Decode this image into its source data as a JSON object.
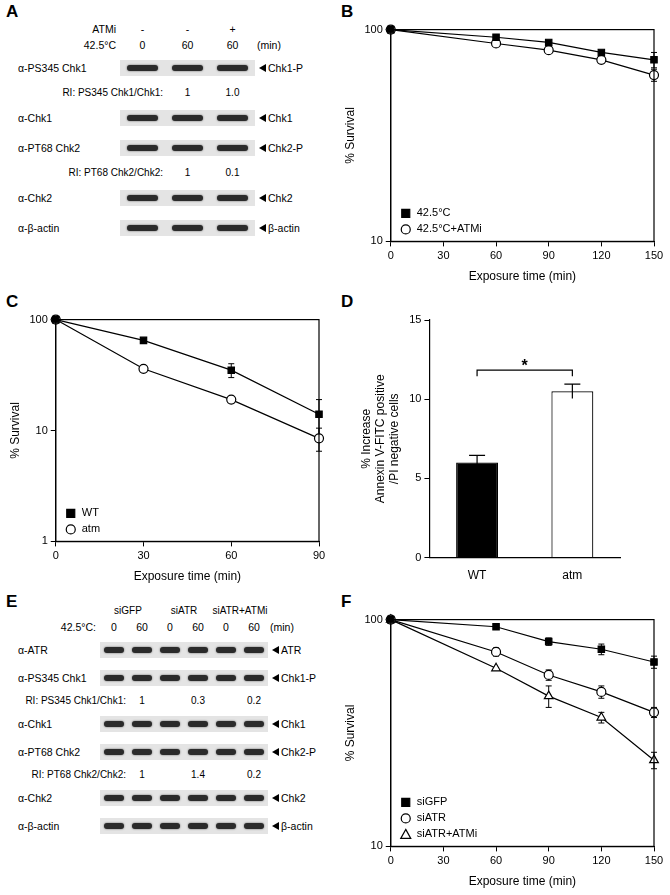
{
  "blots": [
    {
      "panel": "A",
      "header": [
        {
          "label": "ATMi",
          "values": [
            "-",
            "-",
            "+"
          ]
        },
        {
          "label": "42.5°C",
          "values": [
            "0",
            "60",
            "60"
          ],
          "unit": "(min)"
        }
      ],
      "rows": [
        {
          "antibody": "α-PS345 Chk1",
          "band": "Chk1-P"
        },
        {
          "ri_label": "RI: PS345 Chk1/Chk1:",
          "ri": [
            null,
            "1",
            "1.0"
          ]
        },
        {
          "antibody": "α-Chk1",
          "band": "Chk1"
        },
        {
          "antibody": "α-PT68 Chk2",
          "band": "Chk2-P"
        },
        {
          "ri_label": "RI: PT68 Chk2/Chk2:",
          "ri": [
            null,
            "1",
            "0.1"
          ]
        },
        {
          "antibody": "α-Chk2",
          "band": "Chk2"
        },
        {
          "antibody": "α-β-actin",
          "band": "β-actin"
        }
      ]
    },
    {
      "panel": "E",
      "groups": [
        "siGFP",
        "siATR",
        "siATR+ATMi"
      ],
      "header": [
        {
          "label": "42.5°C:",
          "values": [
            "0",
            "60",
            "0",
            "60",
            "0",
            "60"
          ],
          "unit": "(min)"
        }
      ],
      "rows": [
        {
          "antibody": "α-ATR",
          "band": "ATR"
        },
        {
          "antibody": "α-PS345 Chk1",
          "band": "Chk1-P"
        },
        {
          "ri_label": "RI: PS345 Chk1/Chk1:",
          "ri": [
            null,
            "1",
            null,
            "0.3",
            null,
            "0.2"
          ]
        },
        {
          "antibody": "α-Chk1",
          "band": "Chk1"
        },
        {
          "antibody": "α-PT68 Chk2",
          "band": "Chk2-P"
        },
        {
          "ri_label": "RI: PT68 Chk2/Chk2:",
          "ri": [
            null,
            "1",
            null,
            "1.4",
            null,
            "0.2"
          ]
        },
        {
          "antibody": "α-Chk2",
          "band": "Chk2"
        },
        {
          "antibody": "α-β-actin",
          "band": "β-actin"
        }
      ]
    }
  ],
  "chart_data": [
    {
      "panel": "B",
      "type": "line",
      "x": [
        0,
        60,
        90,
        120,
        150
      ],
      "series": [
        {
          "name": "42.5°C",
          "color": "#000000",
          "marker": "square",
          "values": [
            100,
            92,
            87,
            78,
            72
          ],
          "errors": [
            3,
            0,
            0,
            0,
            6
          ]
        },
        {
          "name": "42.5°C+ATMi",
          "color": "#000000",
          "marker": "open_circle",
          "values": [
            100,
            86,
            80,
            72,
            61
          ],
          "errors": [
            0,
            0,
            0,
            0,
            4
          ]
        }
      ],
      "xlim": [
        0,
        150
      ],
      "xticks": [
        0,
        30,
        60,
        90,
        120,
        150
      ],
      "ylim": [
        10,
        100
      ],
      "yticks": [
        10,
        100
      ],
      "log": "y",
      "grid": false,
      "legend": "lower left",
      "xlabel": "Exposure time (min)",
      "ylabel": "% Survival"
    },
    {
      "panel": "C",
      "type": "line",
      "x": [
        0,
        30,
        60,
        90
      ],
      "series": [
        {
          "name": "WT",
          "color": "#000000",
          "marker": "square",
          "values": [
            100,
            65,
            35,
            14
          ],
          "errors": [
            0,
            3,
            5,
            5
          ]
        },
        {
          "name": "atm",
          "color": "#000000",
          "marker": "open_circle",
          "values": [
            100,
            36,
            19,
            8.5
          ],
          "errors": [
            0,
            0,
            1,
            2
          ]
        }
      ],
      "xlim": [
        0,
        90
      ],
      "xticks": [
        0,
        30,
        60,
        90
      ],
      "ylim": [
        1,
        100
      ],
      "yticks": [
        1,
        10,
        100
      ],
      "log": "y",
      "grid": false,
      "legend": "lower left",
      "xlabel": "Exposure time (min)",
      "ylabel": "% Survival"
    },
    {
      "panel": "D",
      "type": "bar",
      "categories": [
        "WT",
        "atm"
      ],
      "values": [
        6.0,
        10.5
      ],
      "errors": [
        0.45,
        0.45
      ],
      "colors": [
        "#000000",
        "#ffffff"
      ],
      "ylim": [
        0,
        15
      ],
      "yticks": [
        0,
        5,
        10,
        15
      ],
      "grid": false,
      "ylabel": [
        "% Increase",
        "Annexin V-FITC positive",
        "/PI negative cells"
      ],
      "annotations": [
        {
          "text": "*",
          "between": [
            "WT",
            "atm"
          ]
        }
      ]
    },
    {
      "panel": "F",
      "type": "line",
      "x": [
        0,
        60,
        90,
        120,
        150
      ],
      "series": [
        {
          "name": "siGFP",
          "color": "#000000",
          "marker": "square",
          "values": [
            100,
            93,
            80,
            74,
            65
          ],
          "errors": [
            0,
            0,
            3,
            4,
            4
          ]
        },
        {
          "name": "siATR",
          "color": "#000000",
          "marker": "open_circle",
          "values": [
            100,
            72,
            57,
            48,
            39
          ],
          "errors": [
            0,
            3,
            3,
            3,
            2
          ]
        },
        {
          "name": "siATR+ATMi",
          "color": "#000000",
          "marker": "open_triangle",
          "values": [
            100,
            61,
            46,
            37,
            24
          ],
          "errors": [
            0,
            0,
            5,
            2,
            2
          ]
        }
      ],
      "xlim": [
        0,
        150
      ],
      "xticks": [
        0,
        30,
        60,
        90,
        120,
        150
      ],
      "ylim": [
        10,
        100
      ],
      "yticks": [
        10,
        100
      ],
      "log": "y",
      "grid": false,
      "legend": "lower left",
      "xlabel": "Exposure time (min)",
      "ylabel": "% Survival"
    }
  ]
}
